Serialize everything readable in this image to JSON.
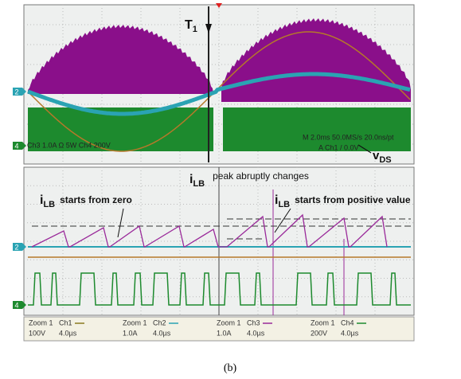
{
  "annotations": {
    "t1": {
      "main": "T",
      "sub": "1"
    },
    "vds": {
      "main": "v",
      "sub": "DS"
    },
    "peak": {
      "main": "i",
      "sub": "LB",
      "text": "peak abruptly changes"
    },
    "zero": {
      "main": "i",
      "sub": "LB",
      "text": "starts from zero"
    },
    "positive": {
      "main": "i",
      "sub": "LB",
      "text": "starts from positive value"
    }
  },
  "channel_markers": {
    "top": [
      "2",
      "4"
    ],
    "bottom": [
      "2",
      "4"
    ]
  },
  "top_readout": {
    "left": "Ch3   1.0A   Ω 5W      Ch4   200V",
    "right_top": "M 2.0ms 50.0MS/s    20.0ns/pt",
    "right_bottom": "A  Ch1  /  0.0V"
  },
  "zoom_readouts": [
    {
      "zoom": "Zoom 1",
      "ch": "Ch1",
      "scale": "100V",
      "time": "4.0µs"
    },
    {
      "zoom": "Zoom 1",
      "ch": "Ch2",
      "scale": "1.0A",
      "time": "4.0µs"
    },
    {
      "zoom": "Zoom 1",
      "ch": "Ch3",
      "scale": "1.0A",
      "time": "4.0µs"
    },
    {
      "zoom": "Zoom 1",
      "ch": "Ch4",
      "scale": "200V",
      "time": "4.0µs"
    }
  ],
  "caption": "(b)"
}
